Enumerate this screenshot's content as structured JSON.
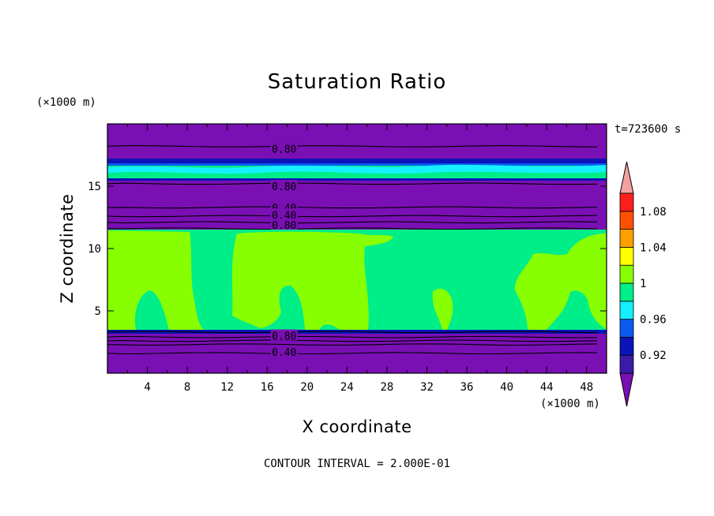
{
  "chart_data": {
    "type": "heatmap",
    "title": "Saturation Ratio",
    "xlabel": "X coordinate",
    "ylabel": "Z coordinate",
    "x_unit": "(×1000 m)",
    "z_unit": "(×1000 m)",
    "time_label": "t=723600 s",
    "footer": "CONTOUR INTERVAL = 2.000E-01",
    "xlim": [
      0,
      50
    ],
    "zlim": [
      0,
      20
    ],
    "x_ticks": [
      "4",
      "8",
      "12",
      "16",
      "20",
      "24",
      "28",
      "32",
      "36",
      "40",
      "44",
      "48"
    ],
    "z_ticks": [
      "5",
      "10",
      "15"
    ],
    "colorbar": {
      "labels": [
        "0.92",
        "0.96",
        "1",
        "1.04",
        "1.08"
      ],
      "levels": [
        0.92,
        0.94,
        0.96,
        0.98,
        1.0,
        1.02,
        1.04,
        1.06,
        1.08,
        1.1
      ],
      "colors": [
        "#7a0fb4",
        "#3a1ba8",
        "#0a14b8",
        "#0a5af0",
        "#14f0ff",
        "#00ee88",
        "#88ff00",
        "#ffff00",
        "#ffa000",
        "#ff5000",
        "#ff1e1e",
        "#f4a0a0"
      ]
    },
    "contour_labels": [
      {
        "text": "0.80",
        "x": 17.7,
        "z": 18.0
      },
      {
        "text": "0.80",
        "x": 17.7,
        "z": 15.0
      },
      {
        "text": "0.40",
        "x": 17.7,
        "z": 13.3
      },
      {
        "text": "0.40",
        "x": 17.7,
        "z": 12.7
      },
      {
        "text": "0.80",
        "x": 17.7,
        "z": 11.9
      },
      {
        "text": "0.80",
        "x": 17.7,
        "z": 3.0
      },
      {
        "text": "0.40",
        "x": 17.7,
        "z": 1.7
      }
    ],
    "contour_lines_z": [
      18.2,
      15.2,
      13.3,
      12.6,
      12.1,
      11.6,
      3.3,
      2.9,
      2.6,
      2.3,
      1.6
    ]
  }
}
